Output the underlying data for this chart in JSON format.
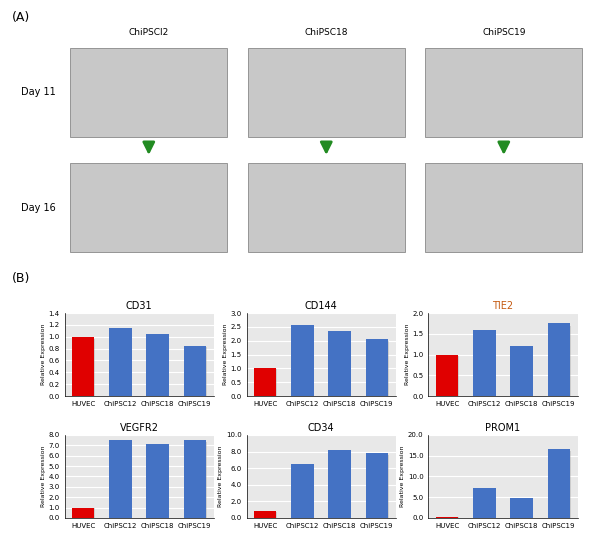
{
  "panel_A_label": "(A)",
  "panel_B_label": "(B)",
  "cell_lines": [
    "ChiPSCl2",
    "ChiPSC18",
    "ChiPSC19"
  ],
  "day11_label": "Day 11",
  "day16_label": "Day 16",
  "bar_xlabel_categories": [
    "HUVEC",
    "ChiPSC12",
    "ChiPSC18",
    "ChiPSC19"
  ],
  "charts": [
    {
      "title": "CD31",
      "title_color": "#000000",
      "ylim": [
        0,
        1.4
      ],
      "yticks": [
        0.0,
        0.2,
        0.4,
        0.6,
        0.8,
        1.0,
        1.2,
        1.4
      ],
      "values": [
        1.0,
        1.15,
        1.05,
        0.85
      ],
      "bar_colors": [
        "#e00000",
        "#4472c4",
        "#4472c4",
        "#4472c4"
      ]
    },
    {
      "title": "CD144",
      "title_color": "#000000",
      "ylim": [
        0,
        3.0
      ],
      "yticks": [
        0.0,
        0.5,
        1.0,
        1.5,
        2.0,
        2.5,
        3.0
      ],
      "values": [
        1.0,
        2.55,
        2.35,
        2.05
      ],
      "bar_colors": [
        "#e00000",
        "#4472c4",
        "#4472c4",
        "#4472c4"
      ]
    },
    {
      "title": "TIE2",
      "title_color": "#c55a11",
      "ylim": [
        0,
        2.0
      ],
      "yticks": [
        0.0,
        0.5,
        1.0,
        1.5,
        2.0
      ],
      "values": [
        1.0,
        1.6,
        1.2,
        1.75
      ],
      "bar_colors": [
        "#e00000",
        "#4472c4",
        "#4472c4",
        "#4472c4"
      ]
    },
    {
      "title": "VEGFR2",
      "title_color": "#000000",
      "ylim": [
        0,
        8.0
      ],
      "yticks": [
        0.0,
        1.0,
        2.0,
        3.0,
        4.0,
        5.0,
        6.0,
        7.0,
        8.0
      ],
      "values": [
        1.0,
        7.5,
        7.1,
        7.5
      ],
      "bar_colors": [
        "#e00000",
        "#4472c4",
        "#4472c4",
        "#4472c4"
      ]
    },
    {
      "title": "CD34",
      "title_color": "#000000",
      "ylim": [
        0,
        10.0
      ],
      "yticks": [
        0.0,
        2.0,
        4.0,
        6.0,
        8.0,
        10.0
      ],
      "values": [
        0.8,
        6.5,
        8.2,
        7.8
      ],
      "bar_colors": [
        "#e00000",
        "#4472c4",
        "#4472c4",
        "#4472c4"
      ]
    },
    {
      "title": "PROM1",
      "title_color": "#000000",
      "ylim": [
        0,
        20.0
      ],
      "yticks": [
        0.0,
        5.0,
        10.0,
        15.0,
        20.0
      ],
      "values": [
        0.3,
        7.2,
        4.8,
        16.5
      ],
      "bar_colors": [
        "#e00000",
        "#4472c4",
        "#4472c4",
        "#4472c4"
      ]
    }
  ],
  "ylabel": "Relative Expression",
  "bar_width": 0.6,
  "plot_bg": "#e8e8e8",
  "grid_color": "#ffffff",
  "arrow_color": "#228B22"
}
